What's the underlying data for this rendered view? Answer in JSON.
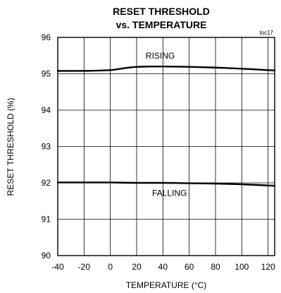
{
  "chart_data": {
    "type": "line",
    "title_lines": [
      "RESET THRESHOLD",
      "vs. TEMPERATURE"
    ],
    "figure_id": "toc17",
    "xlabel": "TEMPERATURE (°C)",
    "ylabel": "RESET THRESHOLD (%)",
    "xlim": [
      -40,
      125
    ],
    "ylim": [
      90,
      96
    ],
    "x_ticks": [
      -40,
      -20,
      0,
      20,
      40,
      60,
      80,
      100,
      120
    ],
    "y_ticks": [
      90,
      91,
      92,
      93,
      94,
      95,
      96
    ],
    "grid": true,
    "series": [
      {
        "name": "RISING",
        "x": [
          -40,
          -20,
          0,
          10,
          20,
          30,
          40,
          60,
          80,
          100,
          125
        ],
        "y": [
          95.08,
          95.08,
          95.1,
          95.15,
          95.19,
          95.2,
          95.2,
          95.19,
          95.17,
          95.14,
          95.09
        ]
      },
      {
        "name": "FALLING",
        "x": [
          -40,
          -20,
          0,
          20,
          40,
          60,
          80,
          100,
          125
        ],
        "y": [
          92.01,
          92.01,
          92.01,
          92.0,
          92.0,
          91.99,
          91.98,
          91.96,
          91.92
        ]
      }
    ],
    "annotations": [
      {
        "text": "RISING",
        "x": 38,
        "y": 95.5
      },
      {
        "text": "FALLING",
        "x": 45,
        "y": 91.72
      }
    ],
    "colors": {
      "line": "#000000",
      "grid": "#000000",
      "background": "#ffffff"
    }
  }
}
